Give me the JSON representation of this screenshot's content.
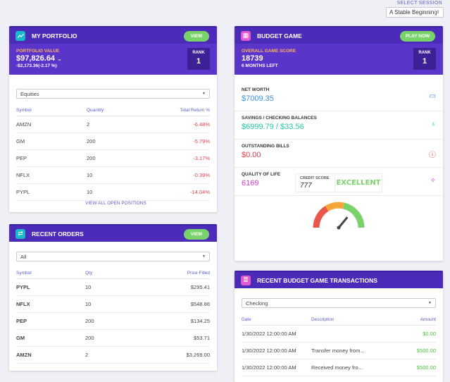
{
  "session": {
    "label": "SELECT SESSION",
    "value": "A Stable Beginning"
  },
  "portfolio": {
    "title": "MY PORTFOLIO",
    "view_label": "VIEW",
    "value_label": "PORTFOLIO VALUE",
    "value": "$97,826.64",
    "change": "-$2,173.36(-2.17 %)",
    "rank_label": "RANK",
    "rank": "1",
    "filter": "Equities",
    "columns": [
      "Symbol",
      "Quantity",
      "Total Return %"
    ],
    "rows": [
      {
        "symbol": "AMZN",
        "qty": "2",
        "ret": "-6.48%"
      },
      {
        "symbol": "GM",
        "qty": "200",
        "ret": "-5.79%"
      },
      {
        "symbol": "PEP",
        "qty": "200",
        "ret": "-3.17%"
      },
      {
        "symbol": "NFLX",
        "qty": "10",
        "ret": "-0.39%"
      },
      {
        "symbol": "PYPL",
        "qty": "10",
        "ret": "-14.04%"
      }
    ],
    "view_all": "VIEW ALL OPEN POSITIONS"
  },
  "orders": {
    "title": "RECENT ORDERS",
    "view_label": "VIEW",
    "filter": "All",
    "columns": [
      "Symbol",
      "Qty",
      "Price Filled"
    ],
    "rows": [
      {
        "symbol": "PYPL",
        "qty": "10",
        "price": "$295.41"
      },
      {
        "symbol": "NFLX",
        "qty": "10",
        "price": "$548.86"
      },
      {
        "symbol": "PEP",
        "qty": "200",
        "price": "$134.25"
      },
      {
        "symbol": "GM",
        "qty": "200",
        "price": "$53.71"
      },
      {
        "symbol": "AMZN",
        "qty": "2",
        "price": "$3,269.00"
      }
    ]
  },
  "budget": {
    "title": "BUDGET GAME",
    "play_label": "PLAY NOW",
    "score_label": "OVERALL GAME SCORE",
    "score": "18739",
    "months_left": "6 MONTHS LEFT",
    "rank_label": "RANK",
    "rank": "1",
    "stats": [
      {
        "label": "NET WORTH",
        "value": "$7009.35",
        "color": "#3b8fe0",
        "icon": "wallet-icon"
      },
      {
        "label": "SAVINGS / CHECKING BALANCES",
        "value": "$6999.79 / $33.56",
        "color": "#23c6a6",
        "icon": "money-bag-icon"
      },
      {
        "label": "OUTSTANDING BILLS",
        "value": "$0.00",
        "color": "#e0424b",
        "icon": "alert-icon"
      },
      {
        "label": "QUALITY OF LIFE",
        "value": "6169",
        "color": "#d63fd9",
        "icon": "sparkle-icon"
      }
    ],
    "gauge_level": 0.72,
    "credit_label": "CREDIT SCORE",
    "credit_score": "777",
    "credit_rating": "EXCELLENT"
  },
  "transactions": {
    "title": "RECENT BUDGET GAME TRANSACTIONS",
    "filter": "Checking",
    "columns": [
      "Date",
      "Description",
      "Amount"
    ],
    "rows": [
      {
        "date": "1/30/2022 12:00:00 AM",
        "desc": "",
        "amount": "$0.00"
      },
      {
        "date": "1/30/2022 12:00:00 AM",
        "desc": "Transfer money from...",
        "amount": "$500.00"
      },
      {
        "date": "1/30/2022 12:00:00 AM",
        "desc": "Received money fro...",
        "amount": "$500.00"
      }
    ]
  },
  "colors": {
    "header": "#4b2bb8",
    "summary": "#5b34c9",
    "accent_green": "#7ad36a",
    "link": "#5b5fc7"
  }
}
